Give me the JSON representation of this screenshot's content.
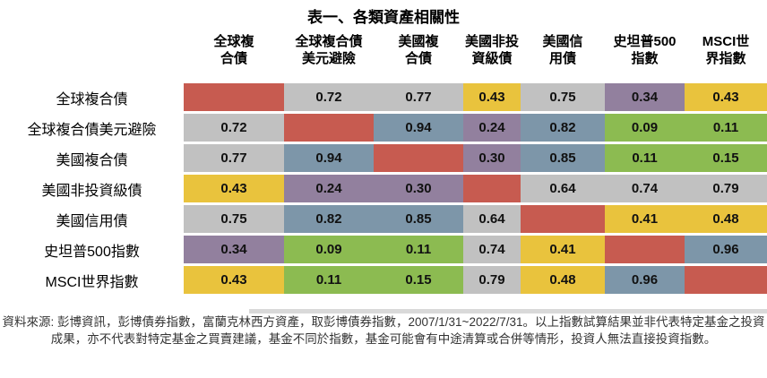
{
  "title": "表一、各類資產相關性",
  "table": {
    "row_labels": [
      "全球複合債",
      "全球複合債美元避險",
      "美國複合債",
      "美國非投資級債",
      "美國信用債",
      "史坦普500指數",
      "MSCI世界指數"
    ],
    "col_headers": [
      [
        "全球複",
        "合債"
      ],
      [
        "全球複合債",
        "美元避險"
      ],
      [
        "美國複",
        "合債"
      ],
      [
        "美國非投",
        "資級債"
      ],
      [
        "美國信",
        "用債"
      ],
      [
        "史坦普500",
        "指數"
      ],
      [
        "MSCI世",
        "界指數"
      ]
    ]
  },
  "chart_data": {
    "type": "heatmap",
    "title": "表一、各類資產相關性",
    "categories": [
      "全球複合債",
      "全球複合債美元避險",
      "美國複合債",
      "美國非投資級債",
      "美國信用債",
      "史坦普500指數",
      "MSCI世界指數"
    ],
    "matrix": [
      [
        null,
        0.72,
        0.77,
        0.43,
        0.75,
        0.34,
        0.43
      ],
      [
        0.72,
        null,
        0.94,
        0.24,
        0.82,
        0.09,
        0.11
      ],
      [
        0.77,
        0.94,
        null,
        0.3,
        0.85,
        0.11,
        0.15
      ],
      [
        0.43,
        0.24,
        0.3,
        null,
        0.64,
        0.74,
        0.79
      ],
      [
        0.75,
        0.82,
        0.85,
        0.64,
        null,
        0.41,
        0.48
      ],
      [
        0.34,
        0.09,
        0.11,
        0.74,
        0.41,
        null,
        0.96
      ],
      [
        0.43,
        0.11,
        0.15,
        0.79,
        0.48,
        0.96,
        null
      ]
    ],
    "value_format": "0.00",
    "diagonal_color": "#c75b50",
    "color_bands": [
      {
        "min": 0.8,
        "max": 1.01,
        "color": "#7d96a9"
      },
      {
        "min": 0.6,
        "max": 0.8,
        "color": "#c1c1c1"
      },
      {
        "min": 0.4,
        "max": 0.6,
        "color": "#e9c33d"
      },
      {
        "min": 0.2,
        "max": 0.4,
        "color": "#92809e"
      },
      {
        "min": 0.0,
        "max": 0.2,
        "color": "#8cbb51"
      }
    ]
  },
  "footer": "資料來源: 彭博資訊，彭博債券指數，富蘭克林西方資產，取彭博債券指數，2007/1/31~2022/7/31。以上指數試算結果並非代表特定基金之投資成果，亦不代表對特定基金之買賣建議，基金不同於指數，基金可能會有中途清算或合併等情形，投資人無法直接投資指數。"
}
